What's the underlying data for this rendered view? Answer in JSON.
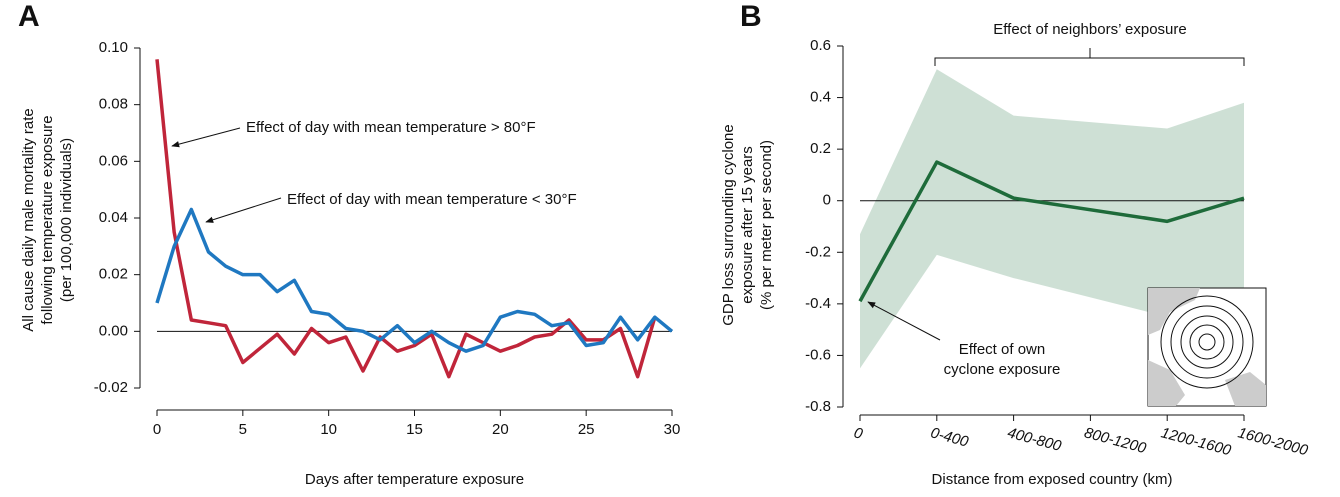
{
  "chart_data": [
    {
      "type": "line",
      "panel": "A",
      "ylabel": [
        "All cause daily male mortality rate",
        "following temperature exposure",
        "(per 100,000 individuals)"
      ],
      "xlabel": "Days after temperature exposure",
      "x": [
        0,
        1,
        2,
        3,
        4,
        5,
        6,
        7,
        8,
        9,
        10,
        11,
        12,
        13,
        14,
        15,
        16,
        17,
        18,
        19,
        20,
        21,
        22,
        23,
        24,
        25,
        26,
        27,
        28,
        29,
        30
      ],
      "series": [
        {
          "name": "Effect of day with mean temperature > 80°F",
          "color": "#c0253a",
          "values": [
            0.096,
            0.035,
            0.004,
            0.003,
            0.002,
            -0.011,
            -0.006,
            -0.001,
            -0.008,
            0.001,
            -0.004,
            -0.002,
            -0.014,
            -0.002,
            -0.007,
            -0.005,
            -0.001,
            -0.016,
            -0.001,
            -0.004,
            -0.007,
            -0.005,
            -0.002,
            -0.001,
            0.004,
            -0.003,
            -0.003,
            0.001,
            -0.016,
            0.005,
            null
          ]
        },
        {
          "name": "Effect of day with mean temperature < 30°F",
          "color": "#1f78c1",
          "values": [
            0.01,
            0.03,
            0.043,
            0.028,
            0.023,
            0.02,
            0.02,
            0.014,
            0.018,
            0.007,
            0.006,
            0.001,
            0.0,
            -0.003,
            0.002,
            -0.004,
            0.0,
            -0.004,
            -0.007,
            -0.005,
            0.005,
            0.007,
            0.006,
            0.002,
            0.003,
            -0.005,
            -0.004,
            0.005,
            -0.003,
            0.005,
            0.0
          ]
        }
      ],
      "xlim": [
        0,
        30
      ],
      "xticks": [
        0,
        5,
        10,
        15,
        20,
        25,
        30
      ],
      "ylim": [
        -0.02,
        0.1
      ],
      "yticks": [
        {
          "value": -0.02,
          "label": "-0.02"
        },
        {
          "value": 0,
          "label": "0.00"
        },
        {
          "value": 0.02,
          "label": "0.02"
        },
        {
          "value": 0.04,
          "label": "0.04"
        },
        {
          "value": 0.06,
          "label": "0.06"
        },
        {
          "value": 0.08,
          "label": "0.08"
        },
        {
          "value": 0.1,
          "label": "0.10"
        }
      ]
    },
    {
      "type": "line",
      "panel": "B",
      "ylabel": [
        "GDP loss surrounding cyclone",
        "exposure after 15 years",
        "(% per meter per second)"
      ],
      "xlabel": "Distance from exposed country (km)",
      "annotation": "Effect of neighbors’ exposure",
      "annotation_lines": [
        "Effect of own",
        "cyclone exposure"
      ],
      "x": [
        0,
        1,
        2,
        4,
        5
      ],
      "series": [
        {
          "color": "#1e6b3a",
          "values": [
            -0.39,
            0.15,
            0.01,
            -0.08,
            0.01
          ]
        }
      ],
      "band": {
        "color": "#c9ddd0",
        "upper": [
          -0.13,
          0.51,
          0.33,
          0.28,
          0.38
        ],
        "lower": [
          -0.65,
          -0.21,
          -0.3,
          -0.45,
          -0.4
        ]
      },
      "xlim": [
        0,
        5
      ],
      "xticks": [
        {
          "value": 0,
          "label": "0"
        },
        {
          "value": 1,
          "label": "0-400"
        },
        {
          "value": 2,
          "label": "400-800"
        },
        {
          "value": 3,
          "label": "800-1200"
        },
        {
          "value": 4,
          "label": "1200-1600"
        },
        {
          "value": 5,
          "label": "1600-2000"
        }
      ],
      "ylim": [
        -0.8,
        0.6
      ],
      "yticks": [
        -0.8,
        -0.6,
        -0.4,
        -0.2,
        0,
        0.2,
        0.4,
        0.6
      ]
    }
  ]
}
